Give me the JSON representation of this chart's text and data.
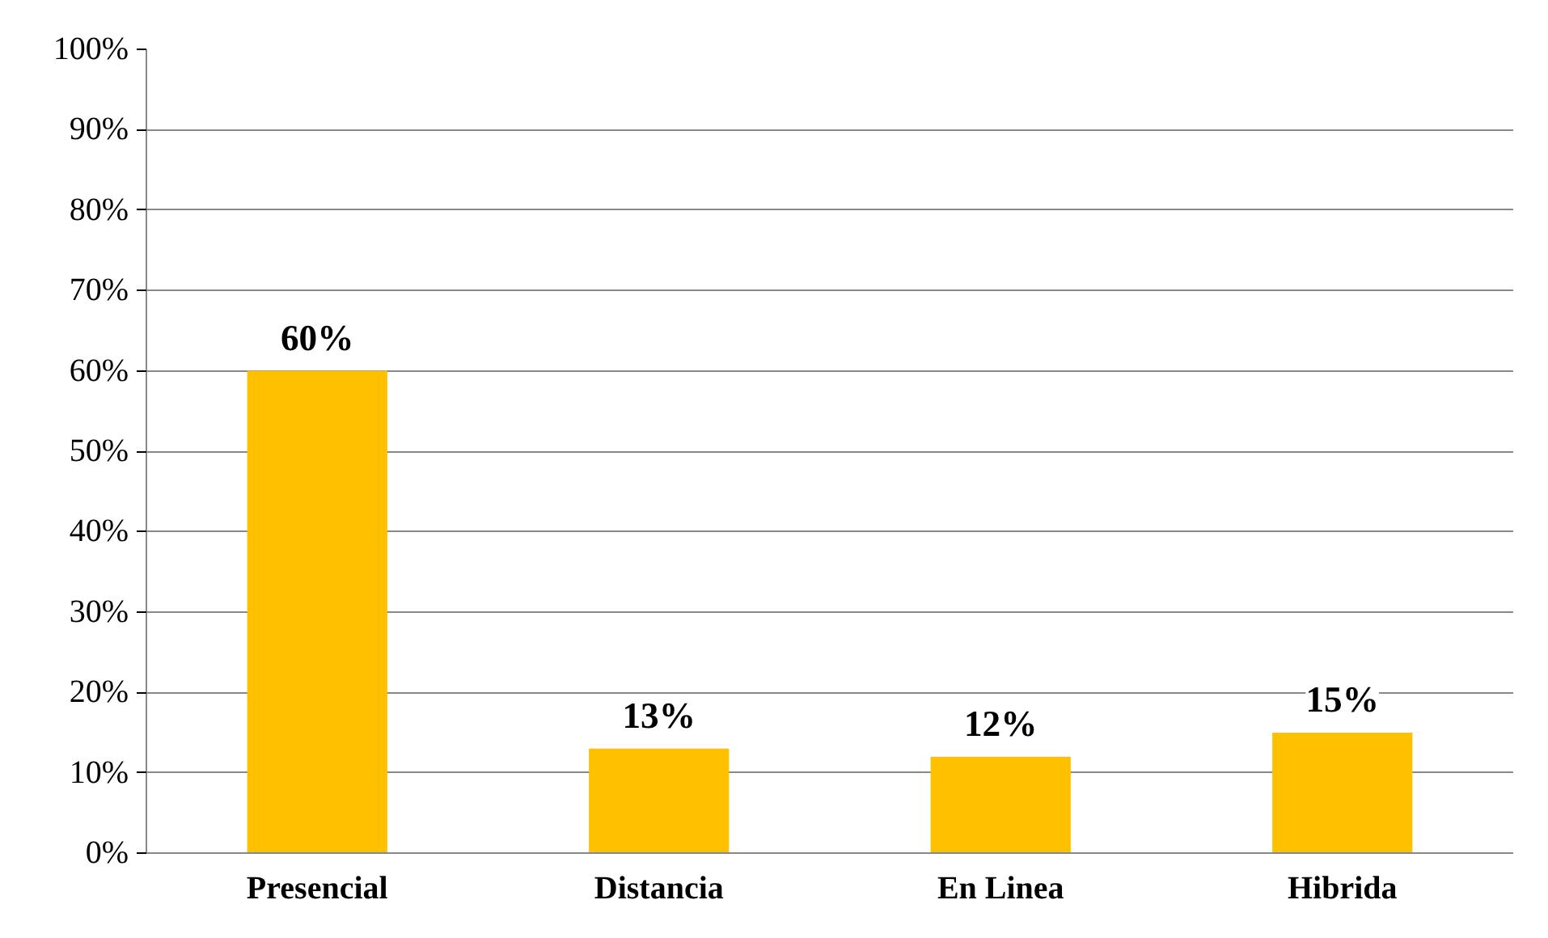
{
  "chart_data": {
    "type": "bar",
    "categories": [
      "Presencial",
      "Distancia",
      "En Linea",
      "Hibrida"
    ],
    "values": [
      60,
      13,
      12,
      15
    ],
    "value_labels": [
      "60%",
      "13%",
      "12%",
      "15%"
    ],
    "color": "#ffc000",
    "ylim": [
      0,
      100
    ],
    "yticks": [
      {
        "value": 0,
        "label": "0%"
      },
      {
        "value": 10,
        "label": "10%"
      },
      {
        "value": 20,
        "label": "20%"
      },
      {
        "value": 30,
        "label": "30%"
      },
      {
        "value": 40,
        "label": "40%"
      },
      {
        "value": 50,
        "label": "50%"
      },
      {
        "value": 60,
        "label": "60%"
      },
      {
        "value": 70,
        "label": "70%"
      },
      {
        "value": 80,
        "label": "80%"
      },
      {
        "value": 90,
        "label": "90%"
      },
      {
        "value": 100,
        "label": "100%"
      }
    ],
    "grid": "y"
  }
}
